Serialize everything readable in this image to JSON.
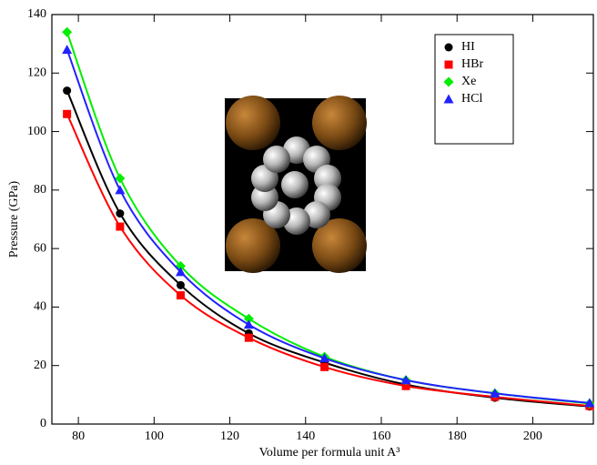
{
  "chart_data": {
    "type": "scatter",
    "x_label": "Volume per formula unit A³",
    "y_label": "Pressure (GPa)",
    "xlim": [
      73,
      216
    ],
    "xticks": [
      80,
      100,
      120,
      140,
      160,
      180,
      200
    ],
    "ylim": [
      0,
      140
    ],
    "yticks": [
      0,
      20,
      40,
      60,
      80,
      100,
      120,
      140
    ],
    "legend": "upper right",
    "x": [
      77,
      91,
      107,
      125,
      145,
      166.5,
      190,
      215
    ],
    "series": [
      {
        "name": "HI",
        "color": "#000000",
        "marker": "circle",
        "values": [
          114,
          72,
          47.5,
          31,
          21,
          13.5,
          9,
          6
        ]
      },
      {
        "name": "HBr",
        "color": "#ff0000",
        "marker": "square",
        "values": [
          106,
          67.5,
          44,
          29.5,
          19.5,
          13,
          9.3,
          6.2
        ]
      },
      {
        "name": "Xe",
        "color": "#00ee00",
        "marker": "diamond",
        "values": [
          134,
          84,
          54,
          36,
          23,
          15,
          10.5,
          7
        ]
      },
      {
        "name": "HCl",
        "color": "#2222ff",
        "marker": "triangle",
        "values": [
          128,
          80,
          52,
          34,
          22.5,
          15,
          10.5,
          7.2
        ]
      }
    ]
  }
}
